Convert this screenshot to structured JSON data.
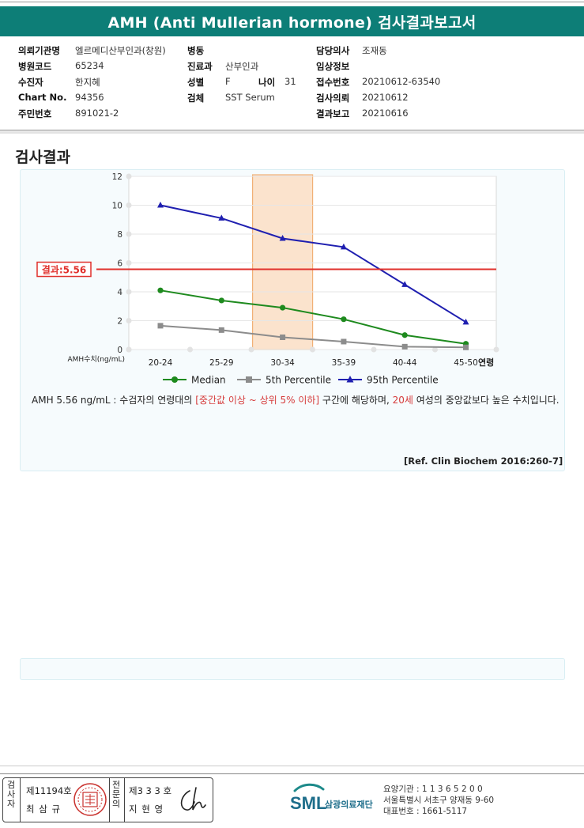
{
  "report": {
    "title": "AMH (Anti Mullerian hormone) 검사결과보고서"
  },
  "patient_info": {
    "hospital_label": "의뢰기관명",
    "hospital_value": "엘르메디산부인과(창원)",
    "ward_label": "병동",
    "ward_value": "",
    "doctor_label": "담당의사",
    "doctor_value": "조재동",
    "code_label": "병원코드",
    "code_value": "65234",
    "dept_label": "진료과",
    "dept_value": "산부인과",
    "clinical_label": "임상정보",
    "clinical_value": "",
    "patient_label": "수진자",
    "patient_value": "한지혜",
    "sex_label": "성별",
    "sex_value": "F",
    "age_label": "나이",
    "age_value": "31",
    "receipt_label": "접수번호",
    "receipt_value": "20210612-63540",
    "chart_label": "Chart No.",
    "chart_value": "94356",
    "specimen_label": "검체",
    "specimen_value": "SST Serum",
    "request_label": "검사의뢰",
    "request_value": "20210612",
    "id_label": "주민번호",
    "id_value": "891021-2",
    "result_label": "결과보고",
    "result_value": "20210616"
  },
  "section": {
    "title": "검사결과"
  },
  "chart_data": {
    "type": "line",
    "categories": [
      "20-24",
      "25-29",
      "30-34",
      "35-39",
      "40-44",
      "45-50"
    ],
    "x_unit_label": "연령",
    "ylabel": "AMH수치(ng/mL)",
    "ylim": [
      0,
      12
    ],
    "yticks": [
      0,
      2,
      4,
      6,
      8,
      10,
      12
    ],
    "grid": true,
    "legend_position": "bottom",
    "highlight_category": "30-34",
    "highlight_color": "#fbe1c8",
    "result": {
      "label": "결과:5.56",
      "value": 5.56,
      "color": "#e0302c"
    },
    "series": [
      {
        "name": "Median",
        "marker": "circle",
        "color": "#1e8a1e",
        "values": [
          4.1,
          3.4,
          2.9,
          2.1,
          1.0,
          0.4
        ]
      },
      {
        "name": "5th Percentile",
        "marker": "square",
        "color": "#8c8c8c",
        "values": [
          1.65,
          1.35,
          0.85,
          0.55,
          0.2,
          0.15
        ]
      },
      {
        "name": "95th Percentile",
        "marker": "triangle",
        "color": "#1f1fb0",
        "values": [
          10.0,
          9.1,
          7.7,
          7.1,
          4.5,
          1.9
        ]
      }
    ]
  },
  "interpretation": {
    "part1": "AMH  5.56 ng/mL : 수검자의 연령대의 ",
    "part2": "[중간값 이상 ~ 상위 5% 이하]",
    "part3": " 구간에 해당하며, ",
    "part4": "20세",
    "part5": " 여성의 중앙값보다 높은 수치입니다.",
    "reference": "[Ref. Clin Biochem 2016:260-7]"
  },
  "footer": {
    "inspector_label": "검사자",
    "inspector_license": "제11194호",
    "inspector_name": "최 삼 규",
    "doctor_label": "전문의",
    "doctor_license": "제3 3 3 호",
    "doctor_name": "지 현 영",
    "org_logo": "SML",
    "org_name": "삼광의료재단",
    "org_code": "요양기관 : 1 1 3 6 5 2 0 0",
    "org_address": "서울특별시 서초구 양재동 9-60",
    "org_phone": "대표번호 : 1661-5117",
    "stamp_icon": "seal-stamp-icon",
    "signature_icon": "handwritten-signature-icon"
  }
}
